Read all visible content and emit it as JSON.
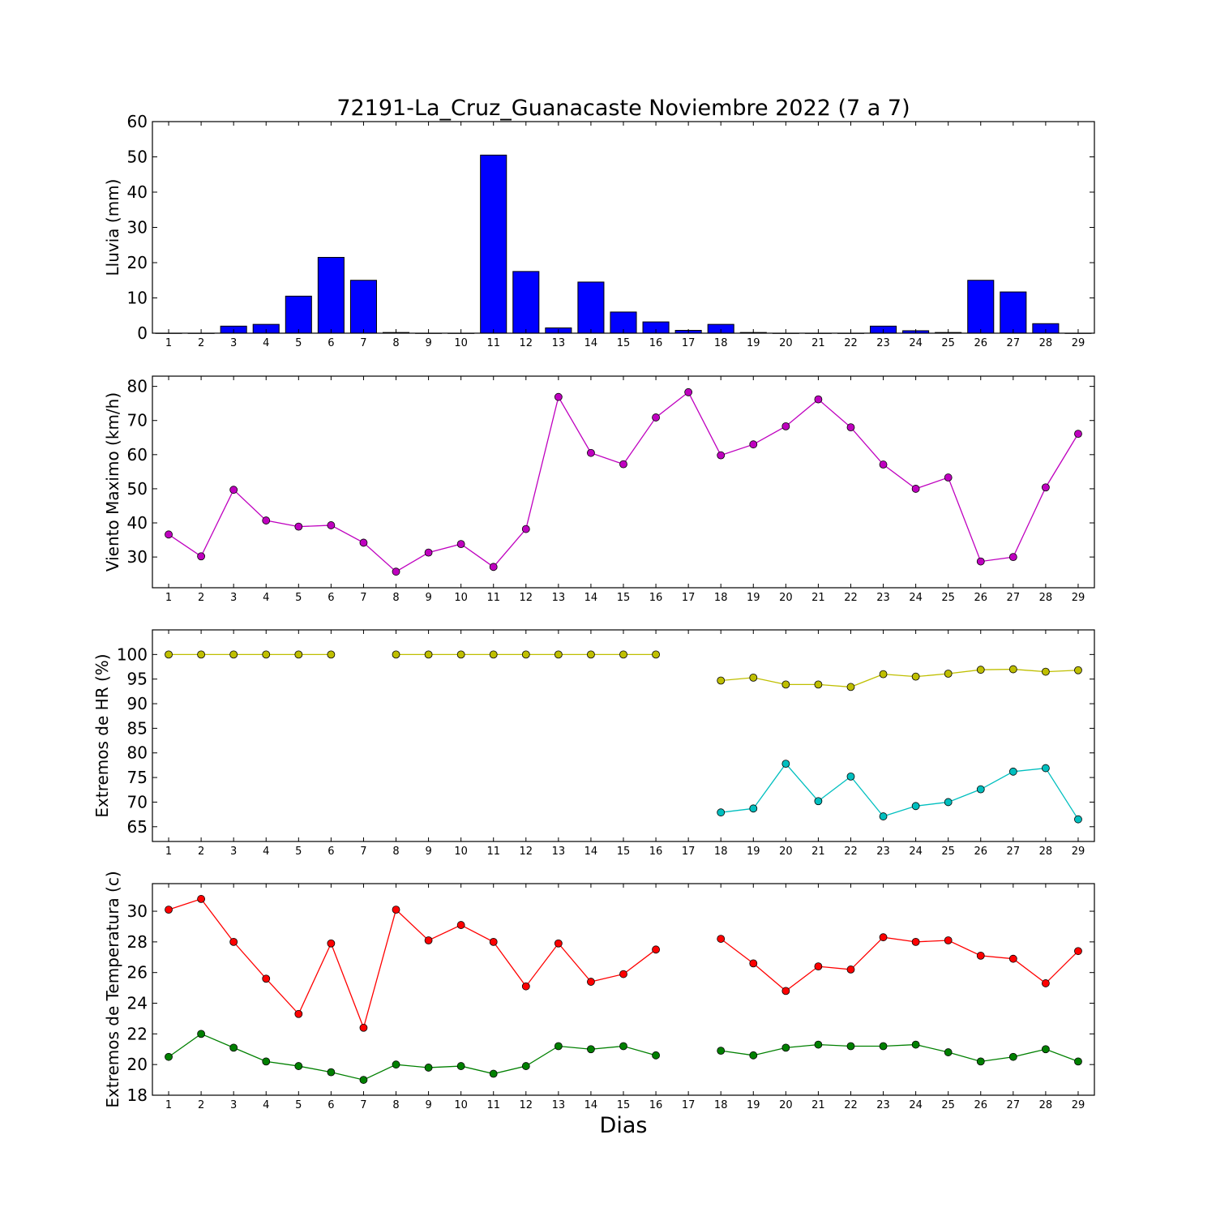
{
  "figure": {
    "title": "72191-La_Cruz_Guanacaste Noviembre 2022  (7 a 7)",
    "xlabel": "Dias"
  },
  "colors": {
    "rain": "#0000ff",
    "wind": "#bf00bf",
    "hr_max": "#bfbf00",
    "hr_min": "#00bfbf",
    "t_max": "#ff0000",
    "t_min": "#008000"
  },
  "chart_data": [
    {
      "type": "bar",
      "ylabel": "Lluvia (mm)",
      "x": [
        1,
        2,
        3,
        4,
        5,
        6,
        7,
        8,
        9,
        10,
        11,
        12,
        13,
        14,
        15,
        16,
        17,
        18,
        19,
        20,
        21,
        22,
        23,
        24,
        25,
        26,
        27,
        28,
        29
      ],
      "values": [
        0,
        0,
        2.0,
        2.5,
        10.5,
        21.5,
        15.0,
        0.2,
        0,
        0,
        50.5,
        17.5,
        1.5,
        14.5,
        6.0,
        3.2,
        0.8,
        2.5,
        0.2,
        0,
        0,
        0,
        2.0,
        0.7,
        0.2,
        15.0,
        11.7,
        2.7,
        0
      ],
      "ylim": [
        0,
        60
      ],
      "yticks": [
        0,
        10,
        20,
        30,
        40,
        50,
        60
      ],
      "xticks": [
        1,
        2,
        3,
        4,
        5,
        6,
        7,
        8,
        9,
        10,
        11,
        12,
        13,
        14,
        15,
        16,
        17,
        18,
        19,
        20,
        21,
        22,
        23,
        24,
        25,
        26,
        27,
        28,
        29
      ]
    },
    {
      "type": "line",
      "ylabel": "Viento Maximo (km/h)",
      "x": [
        1,
        2,
        3,
        4,
        5,
        6,
        7,
        8,
        9,
        10,
        11,
        12,
        13,
        14,
        15,
        16,
        17,
        18,
        19,
        20,
        21,
        22,
        23,
        24,
        25,
        26,
        27,
        28,
        29
      ],
      "series": [
        {
          "values": [
            36.6,
            30.2,
            49.7,
            40.7,
            38.9,
            39.3,
            34.2,
            25.7,
            31.3,
            33.8,
            27.1,
            38.2,
            76.9,
            60.5,
            57.2,
            70.9,
            78.3,
            59.8,
            63.0,
            68.3,
            76.2,
            68.0,
            57.1,
            50.0,
            53.3,
            28.7,
            30.0,
            50.4,
            66.1
          ]
        }
      ],
      "ylim": [
        21,
        83
      ],
      "yticks": [
        30,
        40,
        50,
        60,
        70,
        80
      ],
      "xticks": [
        1,
        2,
        3,
        4,
        5,
        6,
        7,
        8,
        9,
        10,
        11,
        12,
        13,
        14,
        15,
        16,
        17,
        18,
        19,
        20,
        21,
        22,
        23,
        24,
        25,
        26,
        27,
        28,
        29
      ]
    },
    {
      "type": "line",
      "ylabel": "Extremos de HR (%)",
      "x": [
        1,
        2,
        3,
        4,
        5,
        6,
        7,
        8,
        9,
        10,
        11,
        12,
        13,
        14,
        15,
        16,
        17,
        18,
        19,
        20,
        21,
        22,
        23,
        24,
        25,
        26,
        27,
        28,
        29
      ],
      "series": [
        {
          "values": [
            100,
            100,
            100,
            100,
            100,
            100,
            null,
            100,
            100,
            100,
            100,
            100,
            100,
            100,
            100,
            100,
            null,
            94.7,
            95.3,
            93.9,
            93.9,
            93.4,
            96.0,
            95.5,
            96.1,
            96.9,
            97.0,
            96.5,
            96.8
          ]
        },
        {
          "values": [
            null,
            null,
            null,
            null,
            null,
            null,
            null,
            null,
            null,
            null,
            null,
            null,
            null,
            null,
            null,
            null,
            null,
            67.9,
            68.7,
            77.8,
            70.2,
            75.2,
            67.1,
            69.2,
            70.0,
            72.6,
            76.2,
            76.9,
            66.5
          ]
        }
      ],
      "ylim": [
        62,
        105
      ],
      "yticks": [
        65,
        70,
        75,
        80,
        85,
        90,
        95,
        100
      ],
      "xticks": [
        1,
        2,
        3,
        4,
        5,
        6,
        7,
        8,
        9,
        10,
        11,
        12,
        13,
        14,
        15,
        16,
        17,
        18,
        19,
        20,
        21,
        22,
        23,
        24,
        25,
        26,
        27,
        28,
        29
      ]
    },
    {
      "type": "line",
      "ylabel": "Extremos de Temperatura (c)",
      "x": [
        1,
        2,
        3,
        4,
        5,
        6,
        7,
        8,
        9,
        10,
        11,
        12,
        13,
        14,
        15,
        16,
        17,
        18,
        19,
        20,
        21,
        22,
        23,
        24,
        25,
        26,
        27,
        28,
        29
      ],
      "series": [
        {
          "values": [
            30.1,
            30.8,
            28.0,
            25.6,
            23.3,
            27.9,
            22.4,
            30.1,
            28.1,
            29.1,
            28.0,
            25.1,
            27.9,
            25.4,
            25.9,
            27.5,
            null,
            28.2,
            26.6,
            24.8,
            26.4,
            26.2,
            28.3,
            28.0,
            28.1,
            27.1,
            26.9,
            25.3,
            27.4
          ]
        },
        {
          "values": [
            20.5,
            22.0,
            21.1,
            20.2,
            19.9,
            19.5,
            19.0,
            20.0,
            19.8,
            19.9,
            19.4,
            19.9,
            21.2,
            21.0,
            21.2,
            20.6,
            null,
            20.9,
            20.6,
            21.1,
            21.3,
            21.2,
            21.2,
            21.3,
            20.8,
            20.2,
            20.5,
            21.0,
            20.2
          ]
        }
      ],
      "ylim": [
        18,
        31.8
      ],
      "yticks": [
        18,
        20,
        22,
        24,
        26,
        28,
        30
      ],
      "xticks": [
        1,
        2,
        3,
        4,
        5,
        6,
        7,
        8,
        9,
        10,
        11,
        12,
        13,
        14,
        15,
        16,
        17,
        18,
        19,
        20,
        21,
        22,
        23,
        24,
        25,
        26,
        27,
        28,
        29
      ]
    }
  ]
}
